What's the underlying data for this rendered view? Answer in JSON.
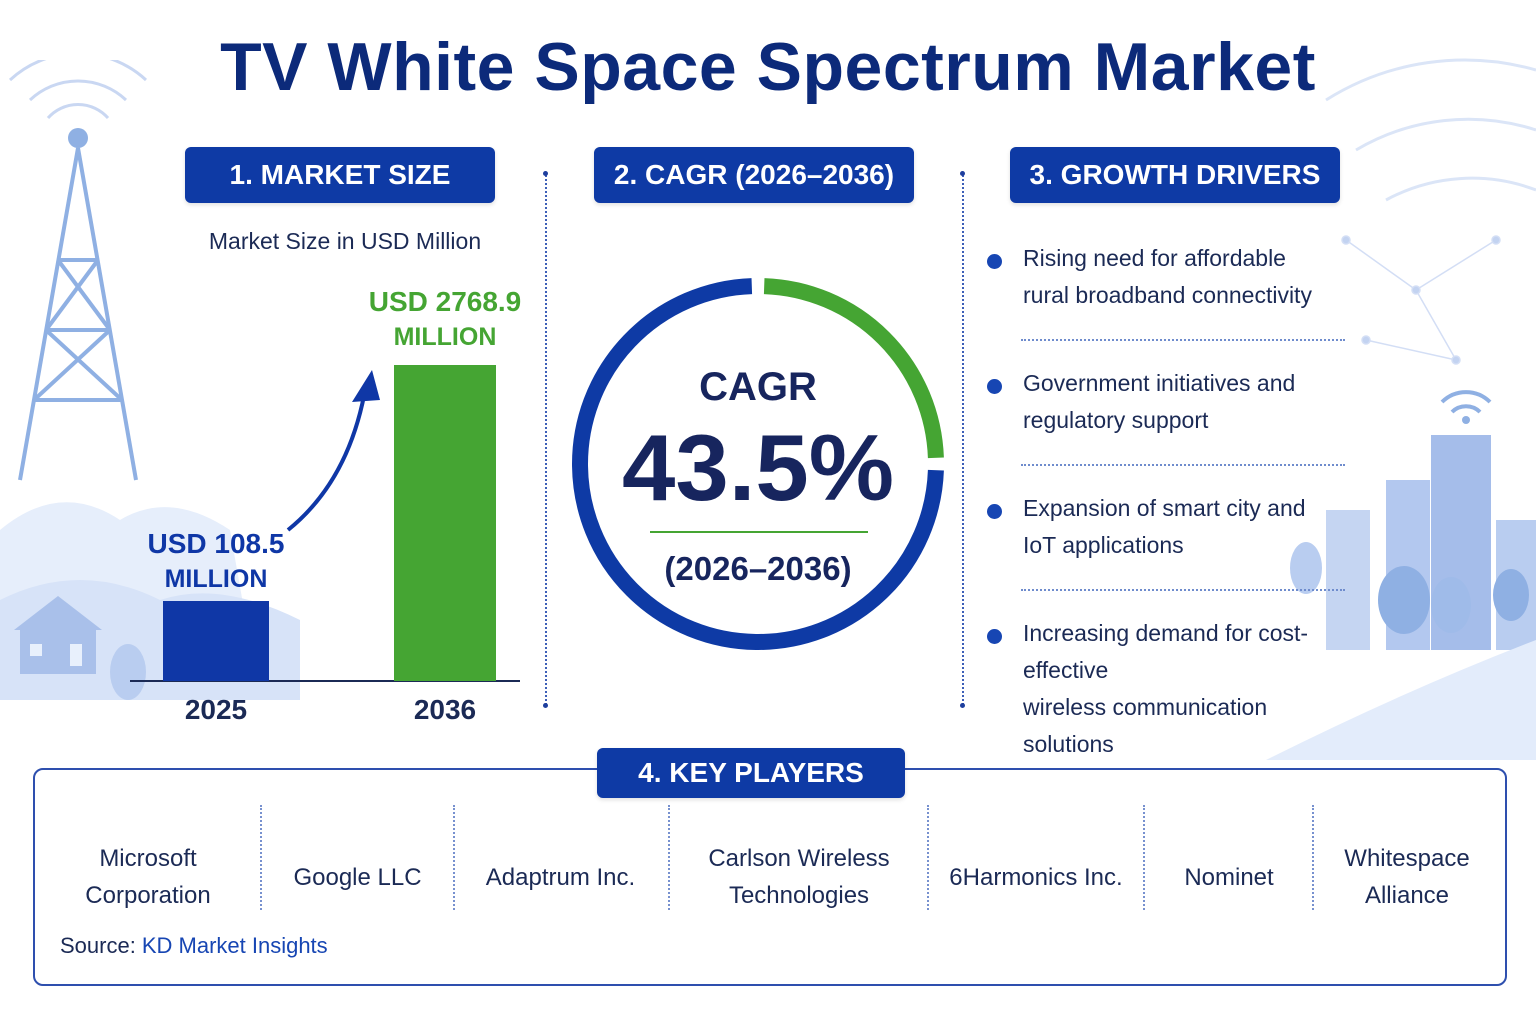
{
  "title": "TV White Space Spectrum Market",
  "sections": {
    "market_size": "1. MARKET SIZE",
    "cagr": "2. CAGR (2026–2036)",
    "drivers": "3. GROWTH DRIVERS",
    "players": "4. KEY PLAYERS"
  },
  "chart_data": {
    "type": "bar",
    "subtitle": "Market Size in USD Million",
    "categories": [
      "2025",
      "2036"
    ],
    "values": [
      108.5,
      2768.9
    ],
    "value_labels": [
      [
        "USD 108.5",
        "MILLION"
      ],
      [
        "USD 2768.9",
        "MILLION"
      ]
    ],
    "colors": [
      "#0f37a6",
      "#45a533"
    ]
  },
  "cagr": {
    "label": "CAGR",
    "value": "43.5%",
    "period": "(2026–2036)",
    "colors": {
      "ring": "#0e3aa5",
      "highlight": "#45a533"
    }
  },
  "drivers": [
    {
      "line1": "Rising need for affordable",
      "line2": "rural broadband connectivity"
    },
    {
      "line1": "Government initiatives and",
      "line2": "regulatory support"
    },
    {
      "line1": "Expansion of smart city and",
      "line2": "IoT applications"
    },
    {
      "line1": "Increasing demand for cost-effective",
      "line2": "wireless communication solutions"
    }
  ],
  "players": [
    {
      "line1": "Microsoft",
      "line2": "Corporation"
    },
    {
      "line1": "Google LLC",
      "line2": ""
    },
    {
      "line1": "Adaptrum Inc.",
      "line2": ""
    },
    {
      "line1": "Carlson Wireless",
      "line2": "Technologies"
    },
    {
      "line1": "6Harmonics Inc.",
      "line2": ""
    },
    {
      "line1": "Nominet",
      "line2": ""
    },
    {
      "line1": "Whitespace",
      "line2": "Alliance"
    }
  ],
  "source": {
    "label": "Source:",
    "name": "KD Market Insights"
  }
}
